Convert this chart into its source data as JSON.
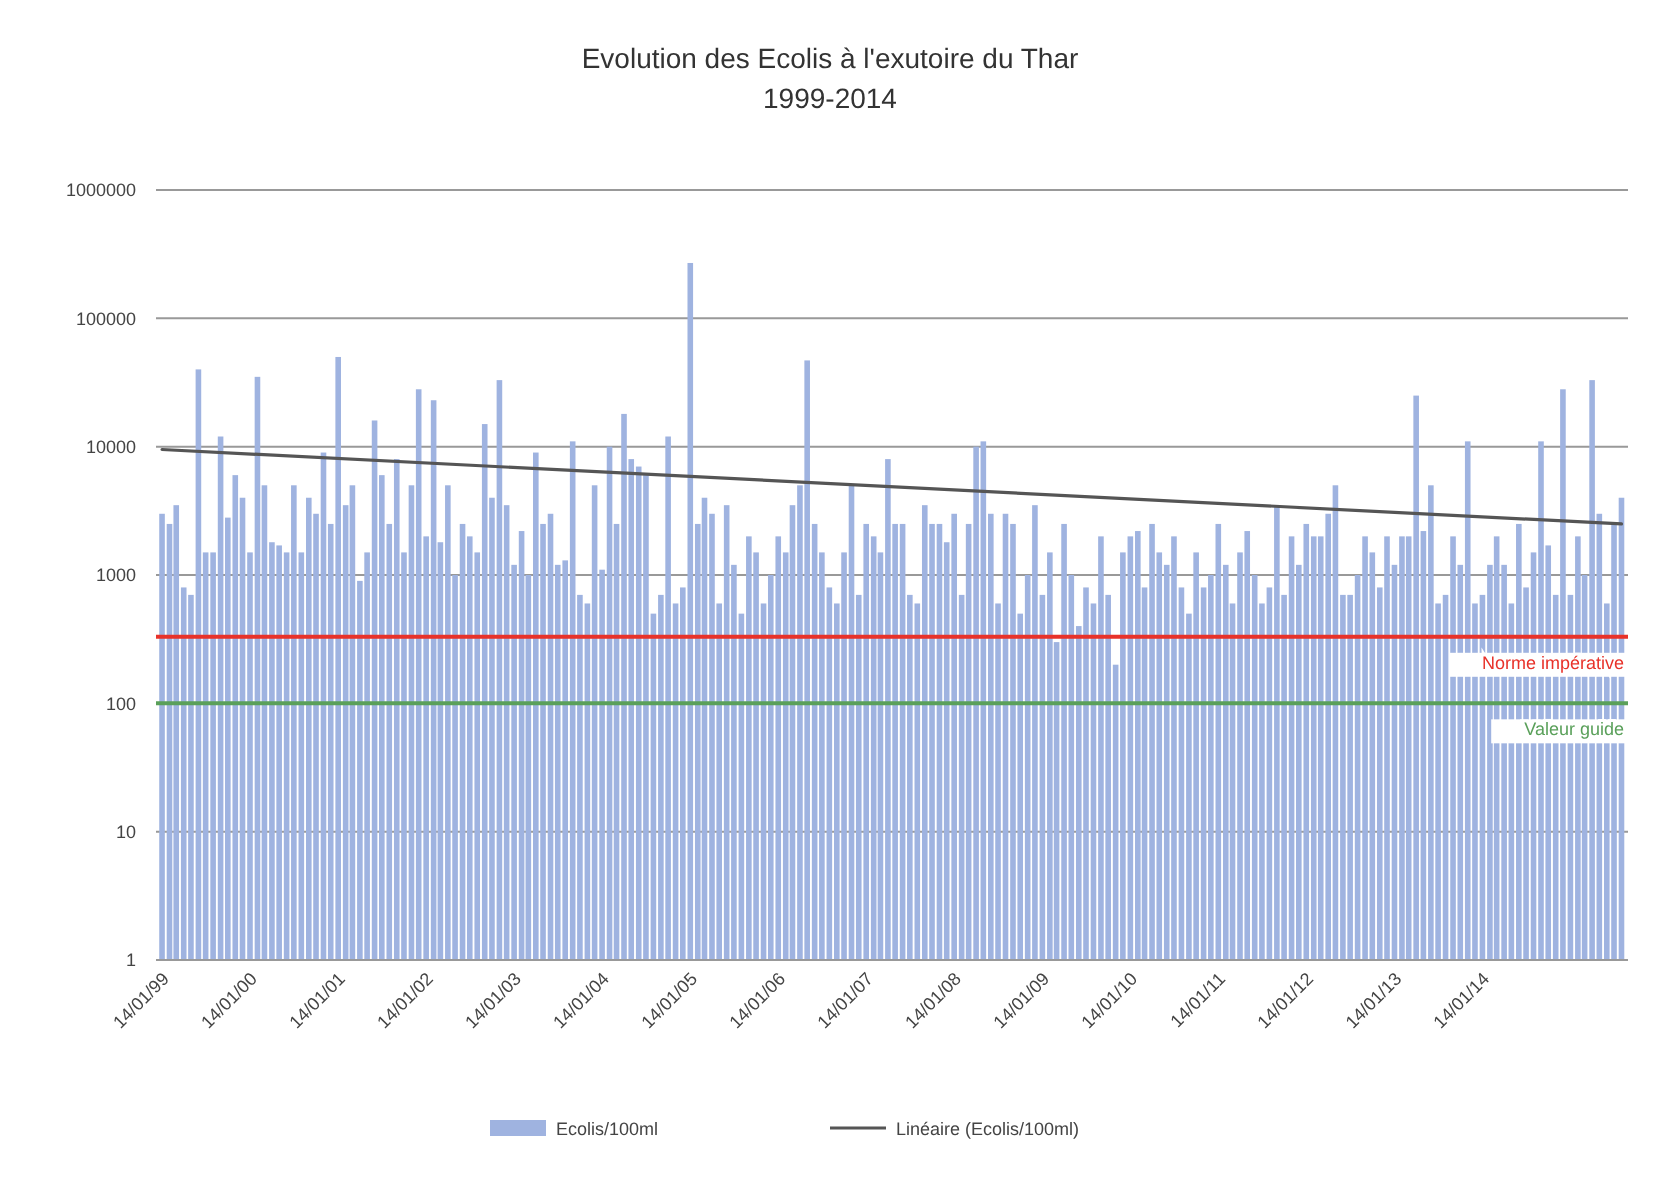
{
  "chart_data": {
    "type": "bar",
    "title": "Evolution des Ecolis à l'exutoire du Thar",
    "subtitle": "1999-2014",
    "log": "y",
    "grid": "y",
    "legend": "bottom",
    "ylim": [
      1,
      1000000
    ],
    "yticks": [
      1,
      10,
      100,
      1000,
      10000,
      100000,
      1000000
    ],
    "xlim": [
      "1998-12-20",
      "2015-09-10"
    ],
    "xticks": [
      {
        "value": "1999-01-14",
        "label": "14/01/99"
      },
      {
        "value": "2000-01-14",
        "label": "14/01/00"
      },
      {
        "value": "2001-01-14",
        "label": "14/01/01"
      },
      {
        "value": "2002-01-14",
        "label": "14/01/02"
      },
      {
        "value": "2003-01-14",
        "label": "14/01/03"
      },
      {
        "value": "2004-01-14",
        "label": "14/01/04"
      },
      {
        "value": "2005-01-14",
        "label": "14/01/05"
      },
      {
        "value": "2006-01-14",
        "label": "14/01/06"
      },
      {
        "value": "2007-01-14",
        "label": "14/01/07"
      },
      {
        "value": "2008-01-14",
        "label": "14/01/08"
      },
      {
        "value": "2009-01-14",
        "label": "14/01/09"
      },
      {
        "value": "2010-01-14",
        "label": "14/01/10"
      },
      {
        "value": "2011-01-14",
        "label": "14/01/11"
      },
      {
        "value": "2012-01-14",
        "label": "14/01/12"
      },
      {
        "value": "2013-01-14",
        "label": "14/01/13"
      },
      {
        "value": "2014-01-14",
        "label": "14/01/14"
      }
    ],
    "x": [
      "1999-01-14",
      "1999-02-14",
      "1999-03-14",
      "1999-04-14",
      "1999-05-14",
      "1999-06-14",
      "1999-07-14",
      "1999-08-14",
      "1999-09-14",
      "1999-10-14",
      "1999-11-14",
      "1999-12-14",
      "2000-01-14",
      "2000-02-14",
      "2000-03-14",
      "2000-04-14",
      "2000-05-14",
      "2000-06-14",
      "2000-07-14",
      "2000-08-14",
      "2000-09-14",
      "2000-10-14",
      "2000-11-14",
      "2000-12-14",
      "2001-01-14",
      "2001-02-14",
      "2001-03-14",
      "2001-04-14",
      "2001-05-14",
      "2001-06-14",
      "2001-07-14",
      "2001-08-14",
      "2001-09-14",
      "2001-10-14",
      "2001-11-14",
      "2001-12-14",
      "2002-01-14",
      "2002-02-14",
      "2002-03-14",
      "2002-04-14",
      "2002-05-14",
      "2002-06-14",
      "2002-07-14",
      "2002-08-14",
      "2002-09-14",
      "2002-10-14",
      "2002-11-14",
      "2002-12-14",
      "2003-01-14",
      "2003-02-14",
      "2003-03-14",
      "2003-04-14",
      "2003-05-14",
      "2003-06-14",
      "2003-07-14",
      "2003-08-14",
      "2003-09-14",
      "2003-10-14",
      "2003-11-14",
      "2003-12-14",
      "2004-01-14",
      "2004-02-14",
      "2004-03-14",
      "2004-04-14",
      "2004-05-14",
      "2004-06-14",
      "2004-07-14",
      "2004-08-14",
      "2004-09-14",
      "2004-10-14",
      "2004-11-14",
      "2004-12-14",
      "2005-01-14",
      "2005-02-14",
      "2005-03-14",
      "2005-04-14",
      "2005-05-14",
      "2005-06-14",
      "2005-07-14",
      "2005-08-14",
      "2005-09-14",
      "2005-10-14",
      "2005-11-14",
      "2005-12-14",
      "2006-01-14",
      "2006-02-14",
      "2006-03-14",
      "2006-04-14",
      "2006-05-14",
      "2006-06-14",
      "2006-07-14",
      "2006-08-14",
      "2006-09-14",
      "2006-10-14",
      "2006-11-14",
      "2006-12-14",
      "2007-01-14",
      "2007-02-14",
      "2007-03-14",
      "2007-04-14",
      "2007-05-14",
      "2007-06-14",
      "2007-07-14",
      "2007-08-14",
      "2007-09-14",
      "2007-10-14",
      "2007-11-14",
      "2007-12-14",
      "2008-01-14",
      "2008-02-14",
      "2008-03-14",
      "2008-04-14",
      "2008-05-14",
      "2008-06-14",
      "2008-07-14",
      "2008-08-14",
      "2008-09-14",
      "2008-10-14",
      "2008-11-14",
      "2008-12-14",
      "2009-01-14",
      "2009-02-14",
      "2009-03-14",
      "2009-04-14",
      "2009-05-14",
      "2009-06-14",
      "2009-07-14",
      "2009-08-14",
      "2009-09-14",
      "2009-10-14",
      "2009-11-14",
      "2009-12-14",
      "2010-01-14",
      "2010-02-14",
      "2010-03-14",
      "2010-04-14",
      "2010-05-14",
      "2010-06-14",
      "2010-07-14",
      "2010-08-14",
      "2010-09-14",
      "2010-10-14",
      "2010-11-14",
      "2010-12-14",
      "2011-01-14",
      "2011-02-14",
      "2011-03-14",
      "2011-04-14",
      "2011-05-14",
      "2011-06-14",
      "2011-07-14",
      "2011-08-14",
      "2011-09-14",
      "2011-10-14",
      "2011-11-14",
      "2011-12-14",
      "2012-01-14",
      "2012-02-14",
      "2012-03-14",
      "2012-04-14",
      "2012-05-14",
      "2012-06-14",
      "2012-07-14",
      "2012-08-14",
      "2012-09-14",
      "2012-10-14",
      "2012-11-14",
      "2012-12-14",
      "2013-01-14",
      "2013-02-14",
      "2013-03-14",
      "2013-04-14",
      "2013-05-14",
      "2013-06-14",
      "2013-07-14",
      "2013-08-14",
      "2013-09-14",
      "2013-10-14",
      "2013-11-14",
      "2013-12-14",
      "2014-01-14",
      "2014-02-14",
      "2014-03-14",
      "2014-04-14",
      "2014-05-14",
      "2014-06-14",
      "2014-07-14",
      "2014-08-14",
      "2014-09-14",
      "2014-10-14",
      "2014-11-14",
      "2014-12-14",
      "2015-01-14",
      "2015-02-14",
      "2015-03-14",
      "2015-04-14",
      "2015-05-14",
      "2015-06-14",
      "2015-07-14",
      "2015-08-14"
    ],
    "series": [
      {
        "name": "Ecolis/100ml",
        "color": "#9fb3e0",
        "values": [
          3000,
          2500,
          3500,
          800,
          700,
          40000,
          1500,
          1500,
          12000,
          2800,
          6000,
          4000,
          1500,
          35000,
          5000,
          1800,
          1700,
          1500,
          5000,
          1500,
          4000,
          3000,
          9000,
          2500,
          50000,
          3500,
          5000,
          900,
          1500,
          16000,
          6000,
          2500,
          8000,
          1500,
          5000,
          28000,
          2000,
          23000,
          1800,
          5000,
          1000,
          2500,
          2000,
          1500,
          15000,
          4000,
          33000,
          3500,
          1200,
          2200,
          1000,
          9000,
          2500,
          3000,
          1200,
          1300,
          11000,
          700,
          600,
          5000,
          1100,
          10000,
          2500,
          18000,
          8000,
          7000,
          6000,
          500,
          700,
          12000,
          600,
          800,
          270000,
          2500,
          4000,
          3000,
          600,
          3500,
          1200,
          500,
          2000,
          1500,
          600,
          1000,
          2000,
          1500,
          3500,
          5000,
          47000,
          2500,
          1500,
          800,
          600,
          1500,
          5000,
          700,
          2500,
          2000,
          1500,
          8000,
          2500,
          2500,
          700,
          600,
          3500,
          2500,
          2500,
          1800,
          3000,
          700,
          2500,
          10000,
          11000,
          3000,
          600,
          3000,
          2500,
          500,
          1000,
          3500,
          700,
          1500,
          300,
          2500,
          1000,
          400,
          800,
          600,
          2000,
          700,
          200,
          1500,
          2000,
          2200,
          800,
          2500,
          1500,
          1200,
          2000,
          800,
          500,
          1500,
          800,
          1000,
          2500,
          1200,
          600,
          1500,
          2200,
          1000,
          600,
          800,
          3500,
          700,
          2000,
          1200,
          2500,
          2000,
          2000,
          3000,
          5000,
          700,
          700,
          1000,
          2000,
          1500,
          800,
          2000,
          1200,
          2000,
          2000,
          25000,
          2200,
          5000,
          600,
          700,
          2000,
          1200,
          11000,
          600,
          700,
          1200,
          2000,
          1200,
          600,
          2500,
          800,
          1500,
          11000,
          1700,
          700,
          28000,
          700,
          2000,
          1000,
          33000,
          3000,
          600,
          2500,
          4000
        ]
      },
      {
        "name": "Linéaire (Ecolis/100ml)",
        "type": "line",
        "color": "#555555",
        "x": [
          "1999-01-14",
          "2015-08-14"
        ],
        "values": [
          9500,
          2500
        ]
      }
    ],
    "ref_lines": [
      {
        "axis": "y",
        "value": 330,
        "label": "Norme impérative",
        "color": "#e8322a"
      },
      {
        "axis": "y",
        "value": 100,
        "label": "Valeur guide",
        "color": "#5aa05a"
      }
    ]
  }
}
